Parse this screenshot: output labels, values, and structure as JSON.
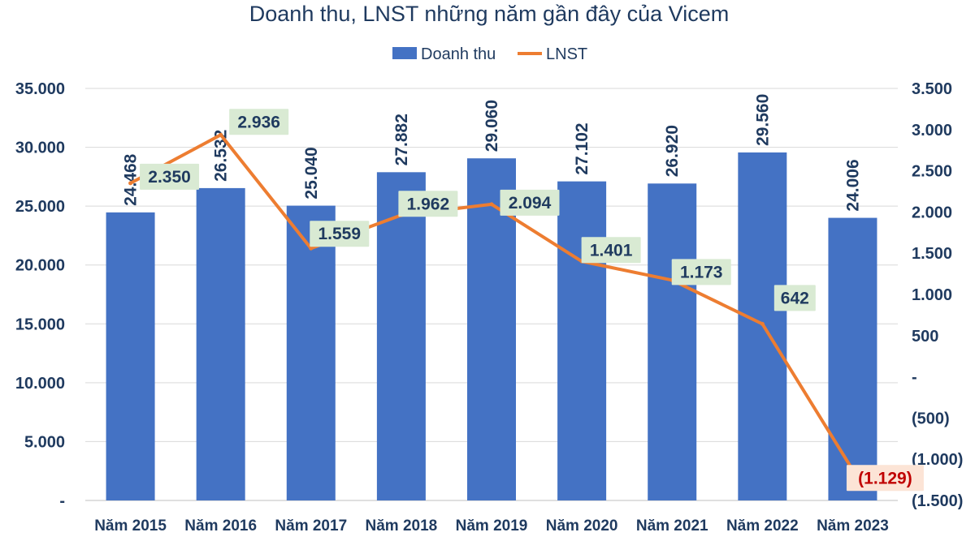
{
  "chart_data": {
    "type": "bar",
    "title": "Doanh thu, LNST những năm gần đây của Vicem",
    "categories": [
      "Năm 2015",
      "Năm 2016",
      "Năm 2017",
      "Năm 2018",
      "Năm 2019",
      "Năm 2020",
      "Năm 2021",
      "Năm 2022",
      "Năm 2023"
    ],
    "series": [
      {
        "name": "Doanh thu",
        "type": "bar",
        "axis": "left",
        "color": "#4472c4",
        "values": [
          24468,
          26532,
          25040,
          27882,
          29060,
          27102,
          26920,
          29560,
          24006
        ],
        "labels": [
          "24.468",
          "26.532",
          "25.040",
          "27.882",
          "29.060",
          "27.102",
          "26.920",
          "29.560",
          "24.006"
        ]
      },
      {
        "name": "LNST",
        "type": "line",
        "axis": "right",
        "color": "#ed7d31",
        "label_bg": "#d9ead3",
        "values": [
          2350,
          2936,
          1559,
          1962,
          2094,
          1401,
          1173,
          642,
          -1129
        ],
        "labels": [
          "2.350",
          "2.936",
          "1.559",
          "1.962",
          "2.094",
          "1.401",
          "1.173",
          "642",
          "(1.129)"
        ]
      }
    ],
    "y_left": {
      "ylim": [
        0,
        35000
      ],
      "ticks": [
        0,
        5000,
        10000,
        15000,
        20000,
        25000,
        30000,
        35000
      ],
      "tick_labels": [
        "-",
        "5.000",
        "10.000",
        "15.000",
        "20.000",
        "25.000",
        "30.000",
        "35.000"
      ]
    },
    "y_right": {
      "ylim": [
        -1500,
        3500
      ],
      "ticks": [
        -1500,
        -1000,
        -500,
        0,
        500,
        1000,
        1500,
        2000,
        2500,
        3000,
        3500
      ],
      "tick_labels": [
        "(1.500)",
        "(1.000)",
        "(500)",
        "-",
        "500",
        "1.000",
        "1.500",
        "2.000",
        "2.500",
        "3.000",
        "3.500"
      ]
    },
    "grid": true,
    "legend_position": "top-center"
  }
}
